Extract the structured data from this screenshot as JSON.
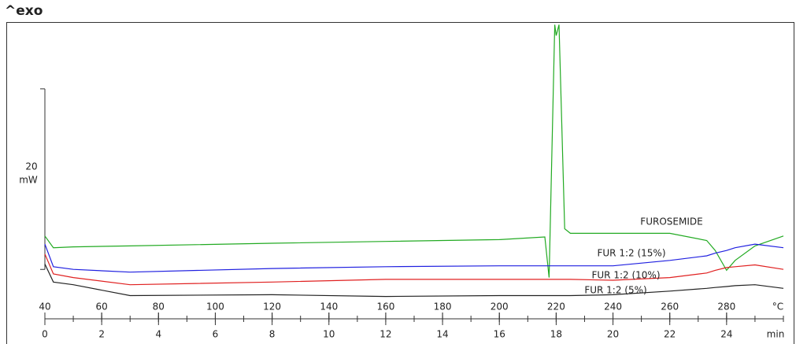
{
  "chart_data": {
    "type": "line",
    "title": "^exo",
    "x_unit": "min",
    "x2_unit": "°C",
    "xlim": [
      0,
      26
    ],
    "xticks": [
      0,
      2,
      4,
      6,
      8,
      10,
      12,
      14,
      16,
      18,
      20,
      22,
      24
    ],
    "x2lim": [
      40,
      300
    ],
    "x2ticks": [
      40,
      60,
      80,
      100,
      120,
      140,
      160,
      180,
      200,
      220,
      240,
      260,
      280
    ],
    "ylim": [
      -4.6,
      27.4
    ],
    "scale_bar": {
      "value": 20,
      "unit": "mW"
    },
    "x": [
      0,
      0.3,
      1,
      3,
      8,
      12,
      16,
      17.6,
      17.75,
      17.95,
      18.0,
      18.1,
      18.3,
      18.5,
      20,
      22,
      23.3,
      23.6,
      24,
      24.3,
      25,
      26
    ],
    "series": [
      {
        "name": "FUROSEMIDE",
        "color": "#22aa22",
        "label_color": "#e02020",
        "values": [
          3.7,
          2.4,
          2.5,
          2.6,
          2.9,
          3.1,
          3.3,
          3.6,
          -0.9,
          27.1,
          25.9,
          27.1,
          4.5,
          4.0,
          4.0,
          4.0,
          3.2,
          2.1,
          -0.1,
          1.0,
          2.6,
          3.7
        ]
      },
      {
        "name": "FUR 1:2 (15%)",
        "color": "#e02020",
        "label_color": "#e02020",
        "values": [
          1.7,
          -0.5,
          -0.9,
          -1.7,
          -1.4,
          -1.1,
          -1.1,
          -1.1,
          -1.1,
          -1.1,
          -1.1,
          -1.1,
          -1.1,
          -1.1,
          -1.2,
          -0.9,
          -0.4,
          -0.1,
          0.2,
          0.3,
          0.5,
          0.0
        ]
      },
      {
        "name": "FUR 1:2 (10%)",
        "color": "#2020e0",
        "label_color": "#2020e0",
        "values": [
          2.8,
          0.3,
          0.0,
          -0.3,
          0.1,
          0.3,
          0.4,
          0.4,
          0.4,
          0.4,
          0.4,
          0.4,
          0.4,
          0.4,
          0.4,
          1.0,
          1.5,
          1.8,
          2.1,
          2.4,
          2.8,
          2.4
        ]
      },
      {
        "name": "FUR 1:2 (5%)",
        "color": "#222222",
        "label_color": "#222222",
        "values": [
          0.6,
          -1.4,
          -1.7,
          -2.9,
          -2.8,
          -3.0,
          -2.9,
          -2.9,
          -2.9,
          -2.9,
          -2.9,
          -2.9,
          -2.9,
          -2.9,
          -2.8,
          -2.4,
          -2.1,
          -2.0,
          -1.9,
          -1.8,
          -1.7,
          -2.1
        ]
      }
    ]
  }
}
